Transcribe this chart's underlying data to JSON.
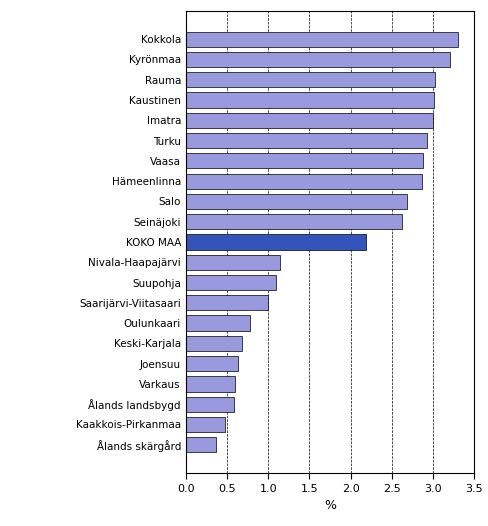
{
  "categories": [
    "Kokkola",
    "Kyrönmaa",
    "Rauma",
    "Kaustinen",
    "Imatra",
    "Turku",
    "Vaasa",
    "Hämeenlinna",
    "Salo",
    "Seinäjoki",
    "KOKO MAA",
    "Nivala-Haapajärvi",
    "Suupohja",
    "Saarijärvi-Viitasaari",
    "Oulunkaari",
    "Keski-Karjala",
    "Joensuu",
    "Varkaus",
    "Ålands landsbygd",
    "Kaakkois-Pirkanmaa",
    "Ålands skärgård"
  ],
  "values": [
    3.3,
    3.2,
    3.02,
    3.01,
    3.0,
    2.93,
    2.88,
    2.87,
    2.68,
    2.62,
    2.18,
    1.14,
    1.1,
    1.0,
    0.78,
    0.68,
    0.63,
    0.6,
    0.58,
    0.48,
    0.37
  ],
  "bar_colors": [
    "#9999dd",
    "#9999dd",
    "#9999dd",
    "#9999dd",
    "#9999dd",
    "#9999dd",
    "#9999dd",
    "#9999dd",
    "#9999dd",
    "#9999dd",
    "#3355bb",
    "#9999dd",
    "#9999dd",
    "#9999dd",
    "#9999dd",
    "#9999dd",
    "#9999dd",
    "#9999dd",
    "#9999dd",
    "#9999dd",
    "#9999dd"
  ],
  "xlabel": "%",
  "xlim": [
    0,
    3.5
  ],
  "xticks": [
    0.0,
    0.5,
    1.0,
    1.5,
    2.0,
    2.5,
    3.0,
    3.5
  ],
  "xtick_labels": [
    "0.0",
    "0.5",
    "1.0",
    "1.5",
    "2.0",
    "2.5",
    "3.0",
    "3.5"
  ],
  "background_color": "#ffffff",
  "bar_edge_color": "#000000",
  "figsize": [
    4.89,
    5.26
  ],
  "dpi": 100,
  "bar_height": 0.75,
  "label_fontsize": 7.5,
  "xlabel_fontsize": 9,
  "xtick_fontsize": 8
}
